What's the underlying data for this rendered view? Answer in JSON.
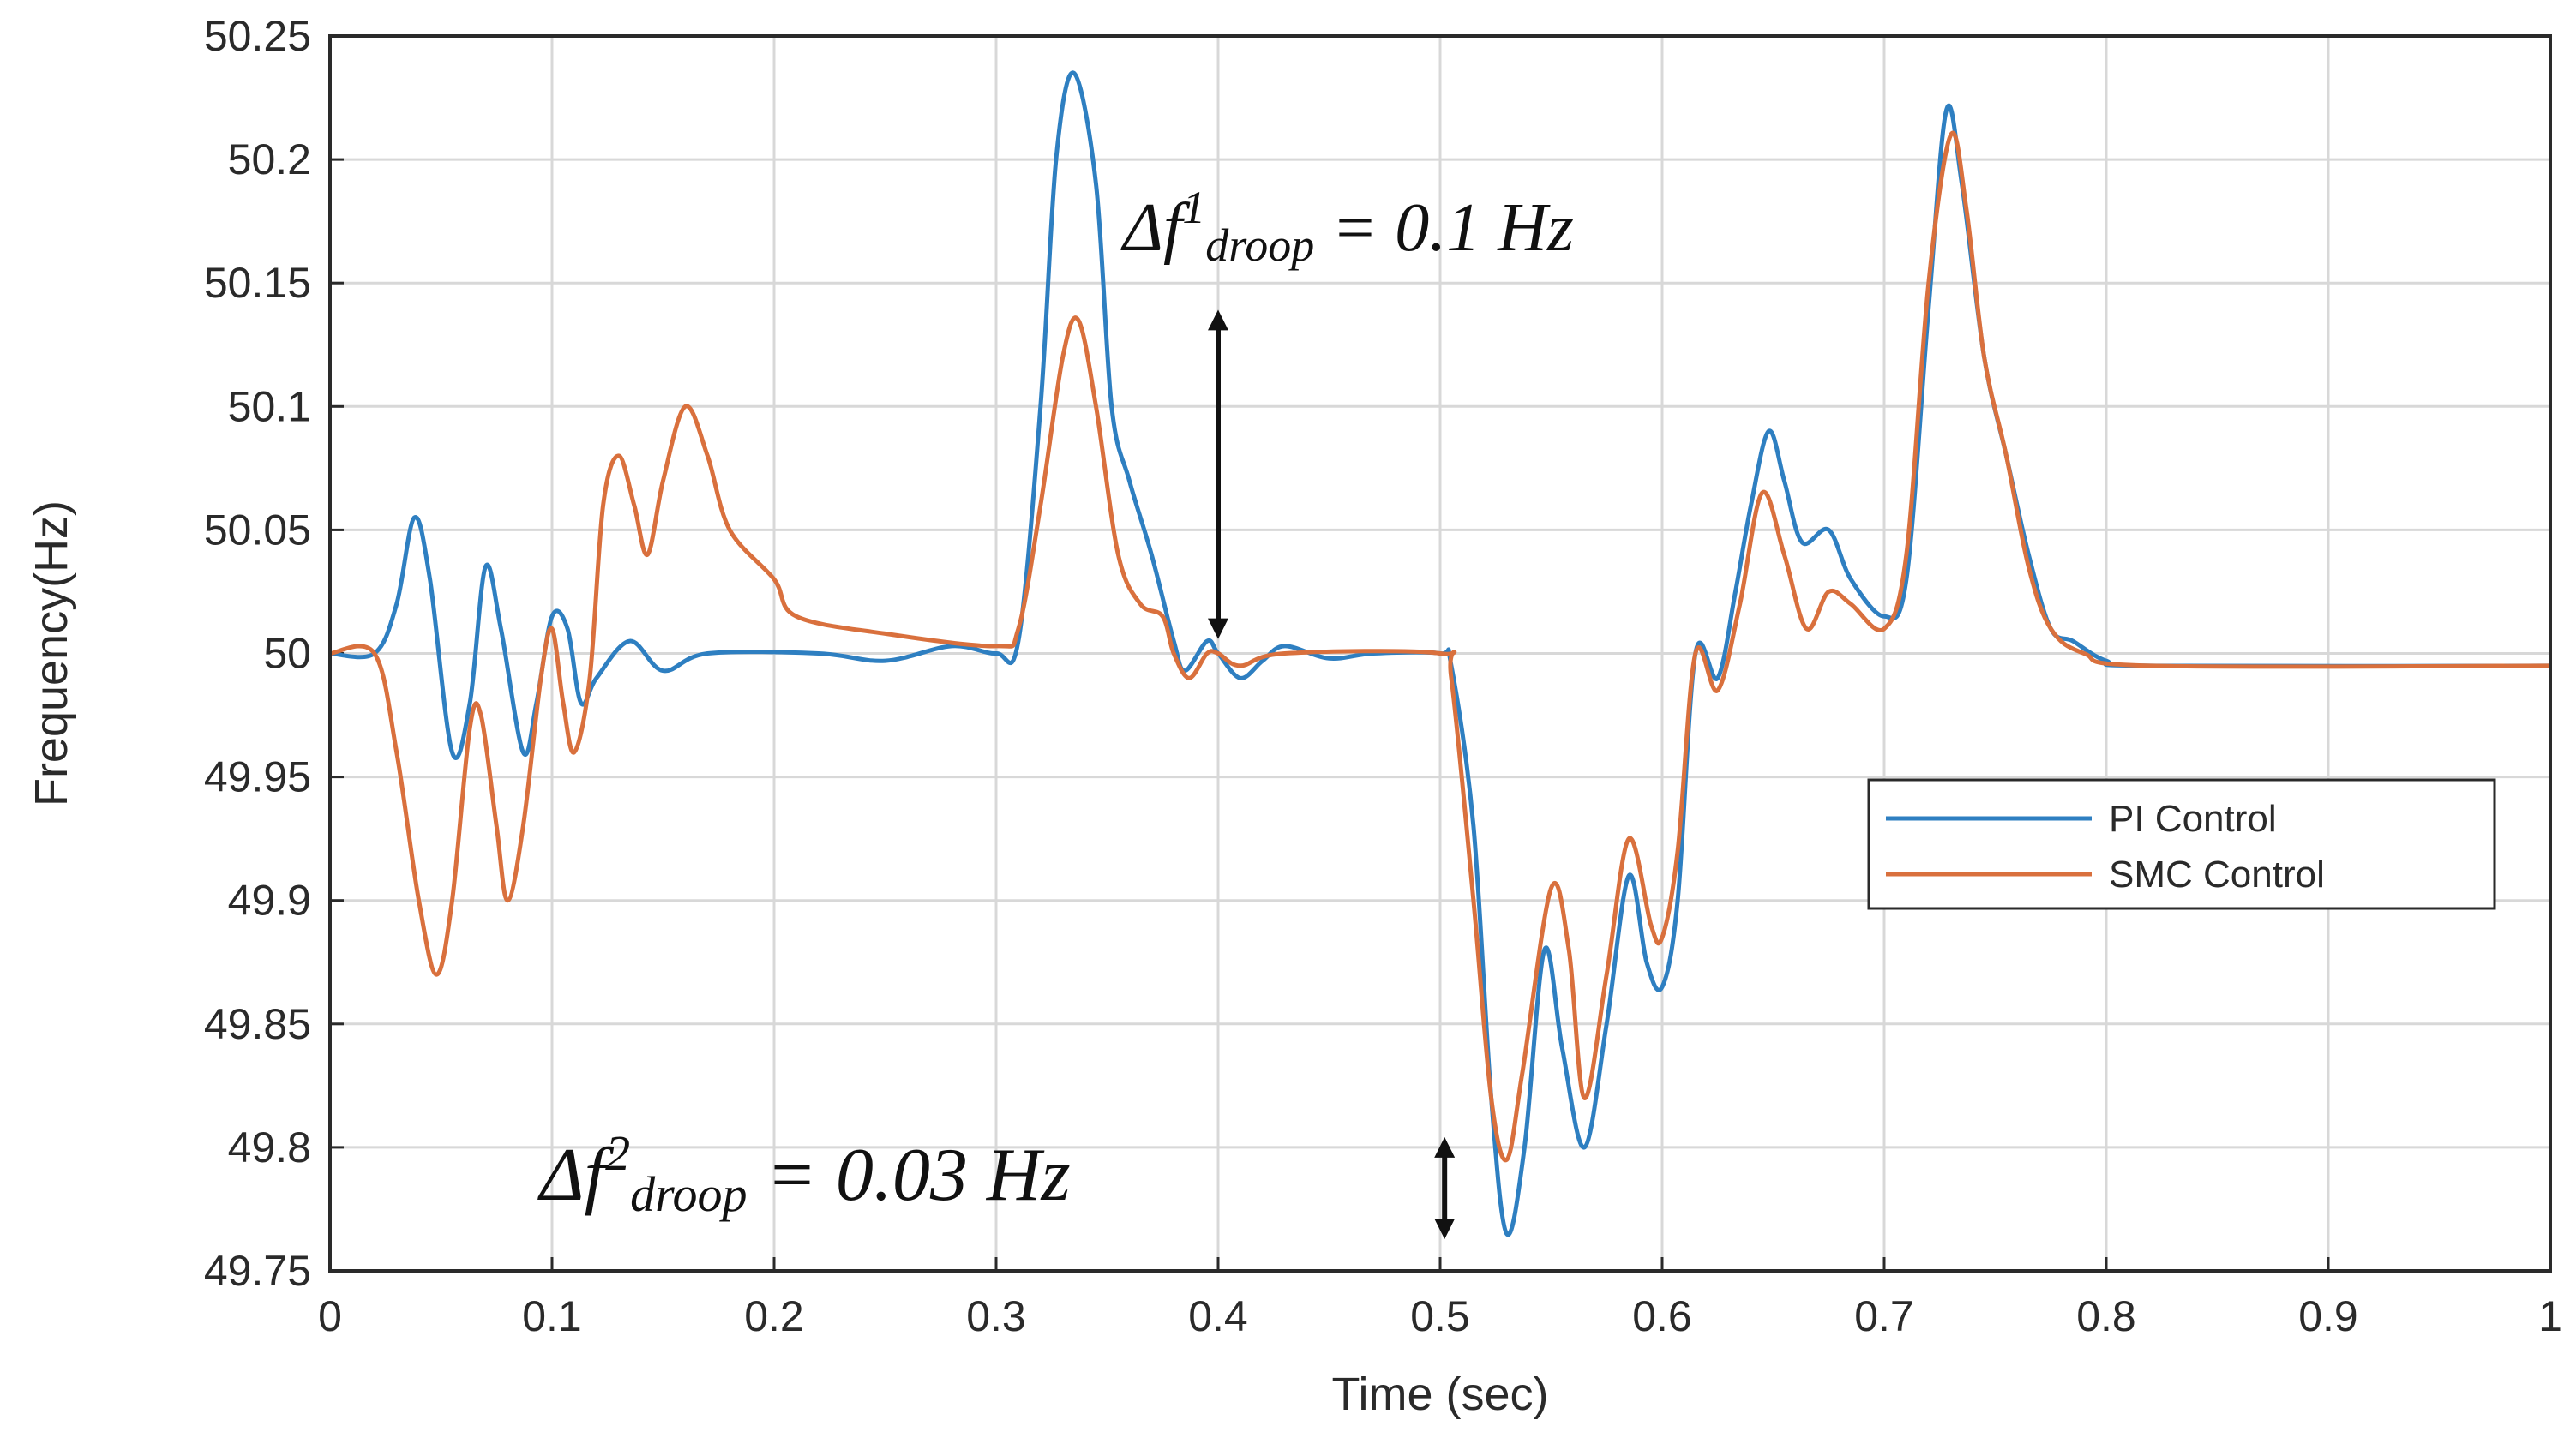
{
  "chart_data": {
    "type": "line",
    "title": "",
    "xlabel": "Time (sec)",
    "ylabel": "Frequency(Hz)",
    "xlim": [
      0,
      1
    ],
    "ylim": [
      49.75,
      50.25
    ],
    "grid": true,
    "legend_position": "right",
    "x_ticks": [
      "0",
      "0.1",
      "0.2",
      "0.3",
      "0.4",
      "0.5",
      "0.6",
      "0.7",
      "0.8",
      "0.9",
      "1"
    ],
    "y_ticks": [
      "49.75",
      "49.8",
      "49.85",
      "49.9",
      "49.95",
      "50",
      "50.05",
      "50.1",
      "50.15",
      "50.2",
      "50.25"
    ],
    "series": [
      {
        "name": "PI Control",
        "color": "#2e7fc1",
        "points": [
          [
            0,
            50
          ],
          [
            0.02,
            50
          ],
          [
            0.03,
            50.02
          ],
          [
            0.038,
            50.055
          ],
          [
            0.045,
            50.03
          ],
          [
            0.055,
            49.96
          ],
          [
            0.063,
            49.98
          ],
          [
            0.07,
            50.035
          ],
          [
            0.077,
            50.01
          ],
          [
            0.087,
            49.96
          ],
          [
            0.093,
            49.98
          ],
          [
            0.1,
            50.015
          ],
          [
            0.107,
            50.01
          ],
          [
            0.113,
            49.98
          ],
          [
            0.12,
            49.99
          ],
          [
            0.135,
            50.005
          ],
          [
            0.15,
            49.993
          ],
          [
            0.17,
            50
          ],
          [
            0.22,
            50
          ],
          [
            0.25,
            49.997
          ],
          [
            0.28,
            50.003
          ],
          [
            0.3,
            50
          ],
          [
            0.31,
            50.005
          ],
          [
            0.32,
            50.1
          ],
          [
            0.327,
            50.2
          ],
          [
            0.335,
            50.235
          ],
          [
            0.345,
            50.19
          ],
          [
            0.352,
            50.1
          ],
          [
            0.36,
            50.07
          ],
          [
            0.37,
            50.04
          ],
          [
            0.38,
            50.005
          ],
          [
            0.385,
            49.993
          ],
          [
            0.395,
            50.005
          ],
          [
            0.4,
            50
          ],
          [
            0.41,
            49.99
          ],
          [
            0.42,
            49.997
          ],
          [
            0.43,
            50.003
          ],
          [
            0.45,
            49.998
          ],
          [
            0.47,
            50
          ],
          [
            0.5,
            50
          ],
          [
            0.505,
            49.995
          ],
          [
            0.515,
            49.93
          ],
          [
            0.523,
            49.82
          ],
          [
            0.53,
            49.765
          ],
          [
            0.538,
            49.8
          ],
          [
            0.547,
            49.88
          ],
          [
            0.555,
            49.84
          ],
          [
            0.565,
            49.8
          ],
          [
            0.575,
            49.85
          ],
          [
            0.585,
            49.91
          ],
          [
            0.593,
            49.875
          ],
          [
            0.6,
            49.865
          ],
          [
            0.607,
            49.9
          ],
          [
            0.615,
            50
          ],
          [
            0.625,
            49.99
          ],
          [
            0.633,
            50.025
          ],
          [
            0.64,
            50.06
          ],
          [
            0.648,
            50.09
          ],
          [
            0.655,
            50.07
          ],
          [
            0.663,
            50.045
          ],
          [
            0.675,
            50.05
          ],
          [
            0.685,
            50.03
          ],
          [
            0.7,
            50.015
          ],
          [
            0.71,
            50.03
          ],
          [
            0.72,
            50.14
          ],
          [
            0.728,
            50.22
          ],
          [
            0.735,
            50.19
          ],
          [
            0.745,
            50.12
          ],
          [
            0.755,
            50.08
          ],
          [
            0.765,
            50.04
          ],
          [
            0.775,
            50.01
          ],
          [
            0.785,
            50.005
          ],
          [
            0.8,
            49.997
          ],
          [
            0.82,
            49.995
          ],
          [
            1,
            49.995
          ]
        ]
      },
      {
        "name": "SMC Control",
        "color": "#d9703d",
        "points": [
          [
            0,
            50
          ],
          [
            0.02,
            50
          ],
          [
            0.03,
            49.96
          ],
          [
            0.04,
            49.9
          ],
          [
            0.048,
            49.87
          ],
          [
            0.055,
            49.9
          ],
          [
            0.063,
            49.97
          ],
          [
            0.068,
            49.975
          ],
          [
            0.075,
            49.93
          ],
          [
            0.08,
            49.9
          ],
          [
            0.087,
            49.93
          ],
          [
            0.095,
            49.99
          ],
          [
            0.1,
            50.01
          ],
          [
            0.105,
            49.98
          ],
          [
            0.11,
            49.96
          ],
          [
            0.117,
            49.99
          ],
          [
            0.123,
            50.06
          ],
          [
            0.13,
            50.08
          ],
          [
            0.137,
            50.06
          ],
          [
            0.143,
            50.04
          ],
          [
            0.15,
            50.07
          ],
          [
            0.16,
            50.1
          ],
          [
            0.17,
            50.08
          ],
          [
            0.18,
            50.05
          ],
          [
            0.2,
            50.03
          ],
          [
            0.21,
            50.015
          ],
          [
            0.25,
            50.008
          ],
          [
            0.3,
            50.003
          ],
          [
            0.31,
            50.01
          ],
          [
            0.32,
            50.06
          ],
          [
            0.33,
            50.12
          ],
          [
            0.337,
            50.135
          ],
          [
            0.345,
            50.1
          ],
          [
            0.355,
            50.04
          ],
          [
            0.365,
            50.02
          ],
          [
            0.375,
            50.015
          ],
          [
            0.38,
            50
          ],
          [
            0.387,
            49.99
          ],
          [
            0.395,
            50
          ],
          [
            0.4,
            50
          ],
          [
            0.41,
            49.995
          ],
          [
            0.43,
            50
          ],
          [
            0.5,
            50
          ],
          [
            0.505,
            49.99
          ],
          [
            0.515,
            49.9
          ],
          [
            0.523,
            49.82
          ],
          [
            0.53,
            49.795
          ],
          [
            0.537,
            49.83
          ],
          [
            0.55,
            49.905
          ],
          [
            0.558,
            49.88
          ],
          [
            0.565,
            49.82
          ],
          [
            0.575,
            49.87
          ],
          [
            0.585,
            49.925
          ],
          [
            0.595,
            49.89
          ],
          [
            0.6,
            49.885
          ],
          [
            0.607,
            49.92
          ],
          [
            0.615,
            50
          ],
          [
            0.625,
            49.985
          ],
          [
            0.635,
            50.02
          ],
          [
            0.645,
            50.065
          ],
          [
            0.655,
            50.04
          ],
          [
            0.665,
            50.01
          ],
          [
            0.675,
            50.025
          ],
          [
            0.685,
            50.02
          ],
          [
            0.7,
            50.01
          ],
          [
            0.71,
            50.04
          ],
          [
            0.72,
            50.15
          ],
          [
            0.73,
            50.21
          ],
          [
            0.737,
            50.18
          ],
          [
            0.745,
            50.12
          ],
          [
            0.755,
            50.08
          ],
          [
            0.765,
            50.035
          ],
          [
            0.775,
            50.01
          ],
          [
            0.79,
            50
          ],
          [
            0.82,
            49.995
          ],
          [
            1,
            49.995
          ]
        ]
      }
    ],
    "annotations": [
      {
        "prefix": "Δf",
        "sup": "1",
        "sub": "droop",
        "value": "= 0.1 Hz",
        "arrow_x": 0.4,
        "arrow_y": [
          50.135,
          50.01
        ]
      },
      {
        "prefix": "Δf",
        "sup": "2",
        "sub": "droop",
        "value": "= 0.03 Hz",
        "arrow_x": 0.502,
        "arrow_y": [
          49.8,
          49.767
        ]
      }
    ]
  }
}
